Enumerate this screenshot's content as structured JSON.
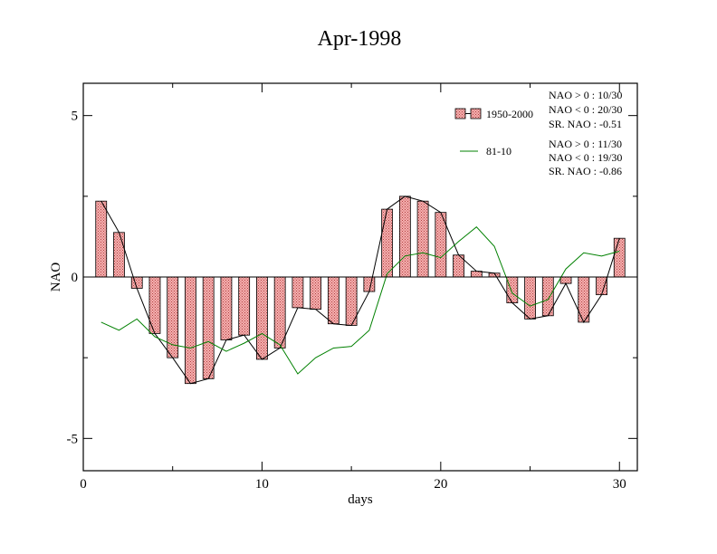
{
  "chart_data": {
    "type": "bar",
    "title": "Apr-1998",
    "xlabel": "days",
    "ylabel": "NAO",
    "xlim": [
      0,
      31
    ],
    "ylim": [
      -6,
      6
    ],
    "x_ticks": [
      0,
      10,
      20,
      30
    ],
    "x_tick_labels": [
      "0",
      "10",
      "20",
      "30"
    ],
    "y_ticks": [
      5,
      0,
      -5
    ],
    "y_tick_labels": [
      "5",
      "0",
      "-5"
    ],
    "x": [
      1,
      2,
      3,
      4,
      5,
      6,
      7,
      8,
      9,
      10,
      11,
      12,
      13,
      14,
      15,
      16,
      17,
      18,
      19,
      20,
      21,
      22,
      23,
      24,
      25,
      26,
      27,
      28,
      29,
      30
    ],
    "series": [
      {
        "name": "1950-2000",
        "kind": "bar+line",
        "values": [
          2.35,
          1.38,
          -0.35,
          -1.75,
          -2.5,
          -3.3,
          -3.15,
          -1.95,
          -1.8,
          -2.55,
          -2.2,
          -0.95,
          -1.0,
          -1.45,
          -1.5,
          -0.45,
          2.1,
          2.5,
          2.35,
          2.0,
          0.68,
          0.18,
          0.12,
          -0.8,
          -1.3,
          -1.2,
          -0.2,
          -1.4,
          -0.55,
          1.2
        ],
        "fill": "#f4a0a0",
        "line_color": "#000000"
      },
      {
        "name": "81-10",
        "kind": "line",
        "values": [
          -1.4,
          -1.65,
          -1.3,
          -1.85,
          -2.1,
          -2.2,
          -2.0,
          -2.3,
          -2.05,
          -1.75,
          -2.1,
          -3.0,
          -2.5,
          -2.2,
          -2.15,
          -1.65,
          0.1,
          0.65,
          0.75,
          0.6,
          1.1,
          1.55,
          0.95,
          -0.5,
          -0.9,
          -0.7,
          0.25,
          0.75,
          0.65,
          0.8
        ],
        "line_color": "#008000"
      }
    ],
    "legend": {
      "position": "top-right",
      "entries": [
        {
          "label": "1950-2000",
          "stats": [
            "NAO > 0 : 10/30",
            "NAO < 0 : 20/30",
            "SR. NAO : -0.51"
          ]
        },
        {
          "label": "81-10",
          "stats": [
            "NAO > 0 : 11/30",
            "NAO < 0 : 19/30",
            "SR. NAO : -0.86"
          ]
        }
      ]
    },
    "grid": false
  }
}
